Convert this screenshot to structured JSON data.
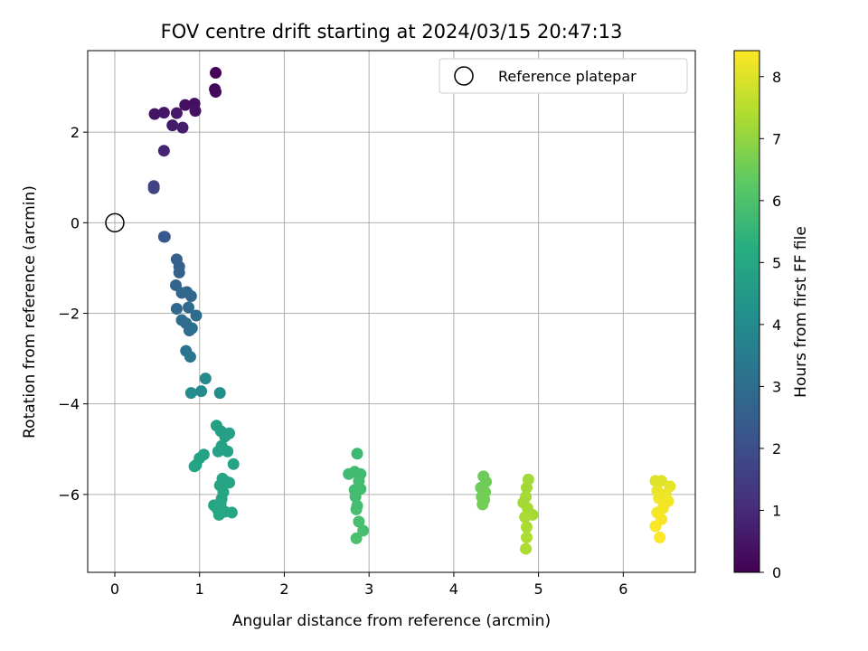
{
  "chart_data": {
    "type": "scatter",
    "title": "FOV centre drift starting at 2024/03/15 20:47:13",
    "xlabel": "Angular distance from reference (arcmin)",
    "ylabel": "Rotation from reference (arcmin)",
    "xlim": [
      -0.32,
      6.85
    ],
    "ylim": [
      -7.72,
      3.8
    ],
    "xticks": [
      0,
      1,
      2,
      3,
      4,
      5,
      6
    ],
    "yticks": [
      -6,
      -4,
      -2,
      0,
      2
    ],
    "grid": true,
    "legend": {
      "location": "top-right",
      "entries": [
        {
          "label": "Reference platepar",
          "marker": "open-circle"
        }
      ]
    },
    "reference_point": {
      "x": 0,
      "y": 0
    },
    "colorbar": {
      "label": "Hours from first FF file",
      "range": [
        0,
        8.42
      ],
      "ticks": [
        0,
        1,
        2,
        3,
        4,
        5,
        6,
        7,
        8
      ],
      "colormap": "viridis"
    },
    "points": [
      {
        "x": 1.19,
        "y": 3.31,
        "t": 0.05
      },
      {
        "x": 1.18,
        "y": 2.95,
        "t": 0.12
      },
      {
        "x": 1.19,
        "y": 2.89,
        "t": 0.2
      },
      {
        "x": 0.94,
        "y": 2.63,
        "t": 0.3
      },
      {
        "x": 0.83,
        "y": 2.6,
        "t": 0.35
      },
      {
        "x": 0.95,
        "y": 2.47,
        "t": 0.4
      },
      {
        "x": 0.47,
        "y": 2.4,
        "t": 0.45
      },
      {
        "x": 0.58,
        "y": 2.43,
        "t": 0.5
      },
      {
        "x": 0.73,
        "y": 2.42,
        "t": 0.55
      },
      {
        "x": 0.68,
        "y": 2.15,
        "t": 0.6
      },
      {
        "x": 0.8,
        "y": 2.1,
        "t": 0.7
      },
      {
        "x": 0.58,
        "y": 1.59,
        "t": 0.85
      },
      {
        "x": 0.46,
        "y": 0.81,
        "t": 1.6
      },
      {
        "x": 0.46,
        "y": 0.76,
        "t": 1.7
      },
      {
        "x": 0.59,
        "y": -0.31,
        "t": 2.3
      },
      {
        "x": 0.58,
        "y": -0.31,
        "t": 2.35
      },
      {
        "x": 0.73,
        "y": -0.81,
        "t": 2.55
      },
      {
        "x": 0.76,
        "y": -0.97,
        "t": 2.6
      },
      {
        "x": 0.76,
        "y": -1.1,
        "t": 2.62
      },
      {
        "x": 0.72,
        "y": -1.38,
        "t": 2.7
      },
      {
        "x": 0.79,
        "y": -1.55,
        "t": 2.75
      },
      {
        "x": 0.85,
        "y": -1.53,
        "t": 2.78
      },
      {
        "x": 0.9,
        "y": -1.62,
        "t": 2.8
      },
      {
        "x": 0.73,
        "y": -1.9,
        "t": 2.85
      },
      {
        "x": 0.87,
        "y": -1.87,
        "t": 2.88
      },
      {
        "x": 0.96,
        "y": -2.05,
        "t": 2.92
      },
      {
        "x": 0.79,
        "y": -2.15,
        "t": 2.95
      },
      {
        "x": 0.84,
        "y": -2.22,
        "t": 2.98
      },
      {
        "x": 0.88,
        "y": -2.38,
        "t": 3.0
      },
      {
        "x": 0.91,
        "y": -2.33,
        "t": 3.02
      },
      {
        "x": 0.84,
        "y": -2.83,
        "t": 3.2
      },
      {
        "x": 0.89,
        "y": -2.96,
        "t": 3.25
      },
      {
        "x": 1.07,
        "y": -3.44,
        "t": 3.9
      },
      {
        "x": 1.02,
        "y": -3.72,
        "t": 4.0
      },
      {
        "x": 0.9,
        "y": -3.76,
        "t": 4.05
      },
      {
        "x": 1.24,
        "y": -3.76,
        "t": 4.1
      },
      {
        "x": 1.2,
        "y": -4.48,
        "t": 4.7
      },
      {
        "x": 1.25,
        "y": -4.6,
        "t": 4.72
      },
      {
        "x": 1.3,
        "y": -4.72,
        "t": 4.74
      },
      {
        "x": 1.35,
        "y": -4.65,
        "t": 4.75
      },
      {
        "x": 1.26,
        "y": -4.93,
        "t": 4.78
      },
      {
        "x": 1.33,
        "y": -5.05,
        "t": 4.8
      },
      {
        "x": 1.22,
        "y": -5.05,
        "t": 4.8
      },
      {
        "x": 1.05,
        "y": -5.12,
        "t": 4.82
      },
      {
        "x": 1.0,
        "y": -5.2,
        "t": 4.83
      },
      {
        "x": 0.96,
        "y": -5.35,
        "t": 4.85
      },
      {
        "x": 0.94,
        "y": -5.38,
        "t": 4.86
      },
      {
        "x": 1.4,
        "y": -5.33,
        "t": 4.87
      },
      {
        "x": 1.27,
        "y": -5.65,
        "t": 4.9
      },
      {
        "x": 1.3,
        "y": -5.7,
        "t": 4.9
      },
      {
        "x": 1.24,
        "y": -5.8,
        "t": 4.92
      },
      {
        "x": 1.35,
        "y": -5.74,
        "t": 4.93
      },
      {
        "x": 1.28,
        "y": -5.95,
        "t": 4.94
      },
      {
        "x": 1.26,
        "y": -6.1,
        "t": 4.95
      },
      {
        "x": 1.17,
        "y": -6.24,
        "t": 4.97
      },
      {
        "x": 1.25,
        "y": -6.2,
        "t": 4.97
      },
      {
        "x": 1.21,
        "y": -6.32,
        "t": 4.98
      },
      {
        "x": 1.23,
        "y": -6.45,
        "t": 5.0
      },
      {
        "x": 1.3,
        "y": -6.38,
        "t": 5.0
      },
      {
        "x": 1.38,
        "y": -6.4,
        "t": 5.02
      },
      {
        "x": 2.86,
        "y": -5.1,
        "t": 5.7
      },
      {
        "x": 2.76,
        "y": -5.55,
        "t": 5.75
      },
      {
        "x": 2.83,
        "y": -5.5,
        "t": 5.76
      },
      {
        "x": 2.9,
        "y": -5.55,
        "t": 5.77
      },
      {
        "x": 2.88,
        "y": -5.7,
        "t": 5.78
      },
      {
        "x": 2.83,
        "y": -5.9,
        "t": 5.8
      },
      {
        "x": 2.9,
        "y": -5.88,
        "t": 5.81
      },
      {
        "x": 2.84,
        "y": -6.05,
        "t": 5.82
      },
      {
        "x": 2.86,
        "y": -6.25,
        "t": 5.84
      },
      {
        "x": 2.85,
        "y": -6.33,
        "t": 5.85
      },
      {
        "x": 2.88,
        "y": -6.6,
        "t": 5.88
      },
      {
        "x": 2.93,
        "y": -6.8,
        "t": 5.9
      },
      {
        "x": 2.85,
        "y": -6.97,
        "t": 5.92
      },
      {
        "x": 4.35,
        "y": -5.6,
        "t": 6.5
      },
      {
        "x": 4.38,
        "y": -5.72,
        "t": 6.52
      },
      {
        "x": 4.32,
        "y": -5.85,
        "t": 6.53
      },
      {
        "x": 4.37,
        "y": -5.95,
        "t": 6.55
      },
      {
        "x": 4.33,
        "y": -6.05,
        "t": 6.56
      },
      {
        "x": 4.36,
        "y": -6.12,
        "t": 6.57
      },
      {
        "x": 4.34,
        "y": -6.22,
        "t": 6.58
      },
      {
        "x": 4.88,
        "y": -5.67,
        "t": 7.2
      },
      {
        "x": 4.86,
        "y": -5.85,
        "t": 7.22
      },
      {
        "x": 4.85,
        "y": -6.05,
        "t": 7.24
      },
      {
        "x": 4.82,
        "y": -6.18,
        "t": 7.25
      },
      {
        "x": 4.87,
        "y": -6.3,
        "t": 7.26
      },
      {
        "x": 4.93,
        "y": -6.45,
        "t": 7.28
      },
      {
        "x": 4.84,
        "y": -6.5,
        "t": 7.3
      },
      {
        "x": 4.86,
        "y": -6.72,
        "t": 7.32
      },
      {
        "x": 4.86,
        "y": -6.95,
        "t": 7.34
      },
      {
        "x": 4.85,
        "y": -7.2,
        "t": 7.36
      },
      {
        "x": 6.38,
        "y": -5.7,
        "t": 8.0
      },
      {
        "x": 6.45,
        "y": -5.7,
        "t": 8.05
      },
      {
        "x": 6.55,
        "y": -5.82,
        "t": 8.1
      },
      {
        "x": 6.4,
        "y": -5.92,
        "t": 8.15
      },
      {
        "x": 6.5,
        "y": -6.0,
        "t": 8.2
      },
      {
        "x": 6.42,
        "y": -6.08,
        "t": 8.25
      },
      {
        "x": 6.53,
        "y": -6.15,
        "t": 8.28
      },
      {
        "x": 6.47,
        "y": -6.3,
        "t": 8.3
      },
      {
        "x": 6.4,
        "y": -6.4,
        "t": 8.32
      },
      {
        "x": 6.45,
        "y": -6.55,
        "t": 8.35
      },
      {
        "x": 6.38,
        "y": -6.7,
        "t": 8.38
      },
      {
        "x": 6.43,
        "y": -6.95,
        "t": 8.4
      }
    ]
  }
}
